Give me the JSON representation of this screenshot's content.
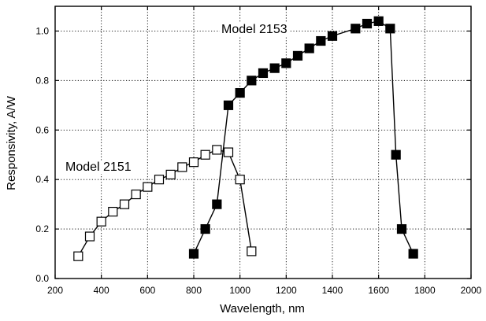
{
  "chart_data": {
    "type": "line",
    "title": "",
    "xlabel": "Wavelength, nm",
    "ylabel": "Responsivity, A/W",
    "xlim": [
      200,
      2000
    ],
    "ylim": [
      0.0,
      1.1
    ],
    "xticks": [
      200,
      400,
      600,
      800,
      1000,
      1200,
      1400,
      1600,
      1800,
      2000
    ],
    "yticks": [
      0.0,
      0.2,
      0.4,
      0.6,
      0.8,
      1.0
    ],
    "xtick_labels": [
      "200",
      "400",
      "600",
      "800",
      "1000",
      "1200",
      "1400",
      "1600",
      "1800",
      "2000"
    ],
    "ytick_labels": [
      "0.0",
      "0.2",
      "0.4",
      "0.6",
      "0.8",
      "1.0"
    ],
    "grid": true,
    "series": [
      {
        "name": "Model 2151",
        "marker": "open-square",
        "color": "#000000",
        "x": [
          300,
          350,
          400,
          450,
          500,
          550,
          600,
          650,
          700,
          750,
          800,
          850,
          900,
          950,
          1000,
          1050
        ],
        "y": [
          0.09,
          0.17,
          0.23,
          0.27,
          0.3,
          0.34,
          0.37,
          0.4,
          0.42,
          0.45,
          0.47,
          0.5,
          0.52,
          0.51,
          0.4,
          0.11
        ]
      },
      {
        "name": "Model 2153",
        "marker": "filled-square",
        "color": "#000000",
        "x": [
          800,
          850,
          900,
          950,
          1000,
          1050,
          1100,
          1150,
          1200,
          1250,
          1300,
          1350,
          1400,
          1500,
          1550,
          1600,
          1650,
          1675,
          1700,
          1750
        ],
        "y": [
          0.1,
          0.2,
          0.3,
          0.7,
          0.75,
          0.8,
          0.83,
          0.85,
          0.87,
          0.9,
          0.93,
          0.96,
          0.98,
          1.01,
          1.03,
          1.04,
          1.01,
          0.5,
          0.2,
          0.1
        ]
      }
    ],
    "annotations": [
      {
        "text": "Model 2151",
        "series": "Model 2151"
      },
      {
        "text": "Model 2153",
        "series": "Model 2153"
      }
    ]
  }
}
